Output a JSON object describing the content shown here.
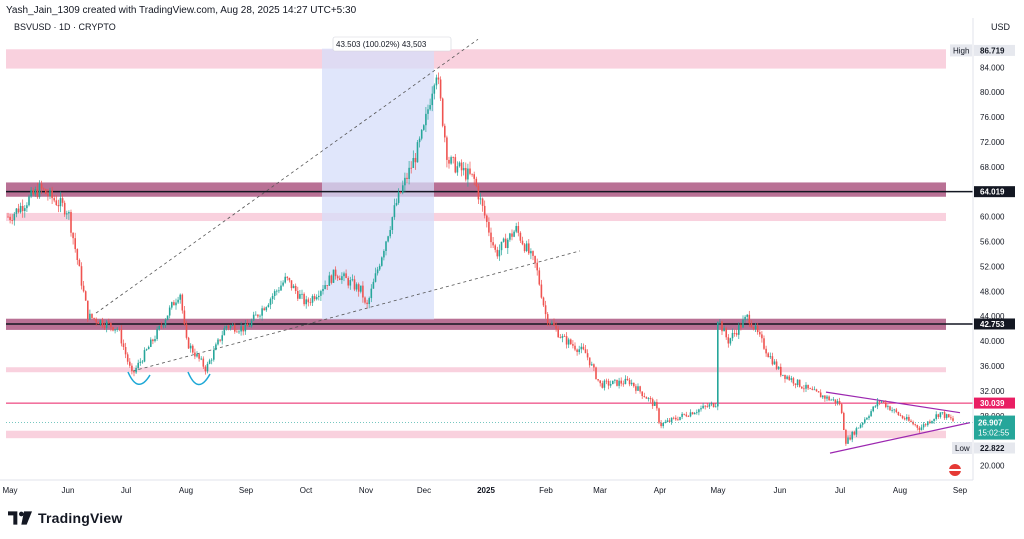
{
  "header": {
    "creator_line": "Yash_Jain_1309 created with TradingView.com, Aug 28, 2025 14:27 UTC+5:30",
    "symbol_line": "BSVUSD · 1D · CRYPTO",
    "currency": "USD"
  },
  "footer": {
    "logo_text": "TradingView"
  },
  "colors": {
    "up": "#26a69a",
    "down": "#ef5350",
    "pink_zone": "#f8c5d6",
    "mauve_zone": "#b5698f",
    "measure_zone": "#d6defa",
    "triangle": "#9c27b0",
    "red_line": "#e91e63",
    "last_price": "#26a69a"
  },
  "chart_data": {
    "type": "candlestick",
    "symbol": "BSVUSD",
    "interval": "1D",
    "ylim": [
      18,
      90
    ],
    "y_ticks": [
      20,
      24,
      28,
      32,
      36,
      40,
      44,
      48,
      52,
      56,
      60,
      64,
      68,
      72,
      76,
      80,
      84,
      88
    ],
    "x_ticks": [
      "May",
      "Jun",
      "Jul",
      "Aug",
      "Sep",
      "Oct",
      "Nov",
      "Dec",
      "2025",
      "Feb",
      "Mar",
      "Apr",
      "May",
      "Jun",
      "Jul",
      "Aug",
      "Sep"
    ],
    "price_path": [
      {
        "d": "May",
        "p": 60.0
      },
      {
        "d": "May+15",
        "p": 64.5
      },
      {
        "d": "Jun",
        "p": 61.0
      },
      {
        "d": "Jun+10",
        "p": 44.0
      },
      {
        "d": "Jun+25",
        "p": 42.0
      },
      {
        "d": "Jul+3",
        "p": 34.5
      },
      {
        "d": "Jul+15",
        "p": 41.0
      },
      {
        "d": "Aug-3",
        "p": 48.0
      },
      {
        "d": "Aug",
        "p": 40.0
      },
      {
        "d": "Aug+10",
        "p": 35.5
      },
      {
        "d": "Aug+20",
        "p": 42.5
      },
      {
        "d": "Sep",
        "p": 42.0
      },
      {
        "d": "Sep+20",
        "p": 50.0
      },
      {
        "d": "Oct",
        "p": 46.0
      },
      {
        "d": "Oct+15",
        "p": 51.0
      },
      {
        "d": "Oct+28",
        "p": 48.0
      },
      {
        "d": "Nov",
        "p": 45.0
      },
      {
        "d": "Nov+15",
        "p": 62.0
      },
      {
        "d": "Nov+25",
        "p": 70.0
      },
      {
        "d": "Dec",
        "p": 74.0
      },
      {
        "d": "Dec+6",
        "p": 84.0
      },
      {
        "d": "Dec+12",
        "p": 69.0
      },
      {
        "d": "Dec+25",
        "p": 66.0
      },
      {
        "d": "2025+5",
        "p": 54.0
      },
      {
        "d": "2025+15",
        "p": 58.0
      },
      {
        "d": "2025+25",
        "p": 52.0
      },
      {
        "d": "Feb",
        "p": 44.0
      },
      {
        "d": "Feb+8",
        "p": 40.5
      },
      {
        "d": "Feb+20",
        "p": 38.0
      },
      {
        "d": "Mar",
        "p": 33.0
      },
      {
        "d": "Mar+15",
        "p": 33.5
      },
      {
        "d": "Mar+28",
        "p": 29.5
      },
      {
        "d": "Apr",
        "p": 26.5
      },
      {
        "d": "Apr+15",
        "p": 28.5
      },
      {
        "d": "Apr+28",
        "p": 30.0
      },
      {
        "d": "May-2",
        "p": 45.0
      },
      {
        "d": "May+5",
        "p": 40.0
      },
      {
        "d": "May+15",
        "p": 44.0
      },
      {
        "d": "May+25",
        "p": 38.0
      },
      {
        "d": "Jun",
        "p": 35.0
      },
      {
        "d": "Jun+15",
        "p": 32.0
      },
      {
        "d": "Jun+30",
        "p": 30.0
      },
      {
        "d": "Jul+3",
        "p": 23.8
      },
      {
        "d": "Jul+20",
        "p": 30.5
      },
      {
        "d": "Aug",
        "p": 28.0
      },
      {
        "d": "Aug+10",
        "p": 26.0
      },
      {
        "d": "Aug+20",
        "p": 28.5
      },
      {
        "d": "Aug+28",
        "p": 26.9
      }
    ],
    "zones": [
      {
        "from": 83.8,
        "to": 86.9,
        "style": "pink"
      },
      {
        "from": 63.2,
        "to": 65.5,
        "style": "mauve"
      },
      {
        "from": 59.3,
        "to": 60.6,
        "style": "pink"
      },
      {
        "from": 41.8,
        "to": 43.6,
        "style": "mauve"
      },
      {
        "from": 35.0,
        "to": 35.8,
        "style": "pink"
      },
      {
        "from": 24.4,
        "to": 25.6,
        "style": "pink"
      }
    ],
    "measure": {
      "label": "43.503 (100.02%) 43,503",
      "from_price": 43.5,
      "to_price": 87.0
    },
    "levels": [
      {
        "price": 64.019,
        "label": "64.019"
      },
      {
        "price": 42.753,
        "label": "42.753"
      },
      {
        "price": 30.039,
        "label": "30.039"
      }
    ],
    "high": {
      "label": "High",
      "value": "86.719",
      "price": 86.719
    },
    "low": {
      "label": "Low",
      "value": "22.822",
      "price": 22.822
    },
    "last": {
      "value": "26.907",
      "countdown": "15:02:55",
      "price": 26.907
    }
  }
}
